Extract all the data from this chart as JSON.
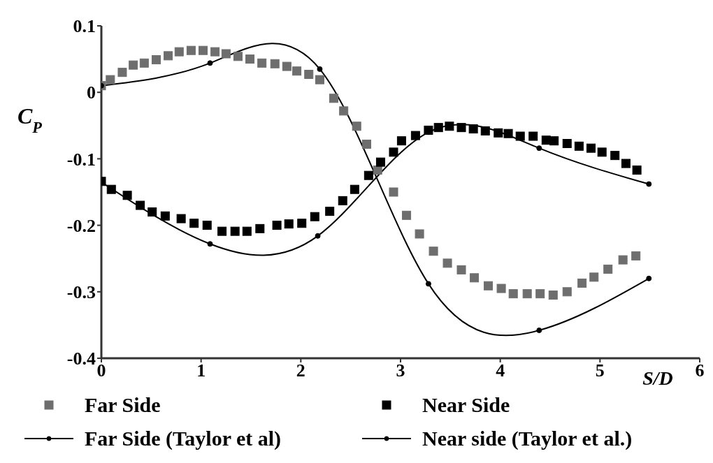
{
  "chart_data": {
    "type": "scatter",
    "xlabel": "S/D",
    "ylabel": "C$_{P}$",
    "xlim": [
      0,
      6
    ],
    "xticks": [
      0,
      1,
      2,
      3,
      4,
      5,
      6
    ],
    "ylim": [
      -0.4,
      0.1
    ],
    "yticks": [
      {
        "value": 0.1,
        "label": "0.1"
      },
      0,
      {
        "value": -0.1,
        "label": "-0.1"
      },
      {
        "value": -0.2,
        "label": "-0.2"
      },
      {
        "value": -0.3,
        "label": "-0.3"
      },
      {
        "value": -0.4,
        "label": "-0.4"
      }
    ],
    "grid": false,
    "legend": "bottom",
    "series": [
      {
        "name": "Far Side",
        "marker": "square",
        "color": "#6e6e6e",
        "x": [
          0,
          0.09,
          0.21,
          0.32,
          0.43,
          0.55,
          0.67,
          0.78,
          0.9,
          1.02,
          1.14,
          1.25,
          1.37,
          1.49,
          1.61,
          1.74,
          1.86,
          1.96,
          2.08,
          2.19,
          2.33,
          2.43,
          2.56,
          2.66,
          2.77,
          2.93,
          3.06,
          3.19,
          3.33,
          3.47,
          3.61,
          3.74,
          3.88,
          4.01,
          4.13,
          4.27,
          4.4,
          4.53,
          4.67,
          4.82,
          4.94,
          5.08,
          5.23,
          5.36
        ],
        "values": [
          0.01,
          0.019,
          0.03,
          0.041,
          0.044,
          0.049,
          0.055,
          0.061,
          0.063,
          0.063,
          0.061,
          0.058,
          0.054,
          0.05,
          0.044,
          0.043,
          0.039,
          0.032,
          0.027,
          0.019,
          -0.009,
          -0.028,
          -0.051,
          -0.078,
          -0.117,
          -0.15,
          -0.185,
          -0.213,
          -0.239,
          -0.257,
          -0.267,
          -0.279,
          -0.291,
          -0.295,
          -0.303,
          -0.303,
          -0.303,
          -0.305,
          -0.3,
          -0.287,
          -0.278,
          -0.266,
          -0.252,
          -0.246
        ]
      },
      {
        "name": "Near Side",
        "marker": "square",
        "color": "#000000",
        "x": [
          0,
          0.1,
          0.26,
          0.39,
          0.51,
          0.64,
          0.8,
          0.93,
          1.06,
          1.21,
          1.34,
          1.46,
          1.59,
          1.76,
          1.88,
          2.01,
          2.14,
          2.29,
          2.42,
          2.54,
          2.68,
          2.8,
          2.93,
          3.01,
          3.15,
          3.28,
          3.38,
          3.49,
          3.61,
          3.73,
          3.85,
          3.98,
          4.08,
          4.2,
          4.33,
          4.46,
          4.54,
          4.67,
          4.79,
          4.91,
          5.02,
          5.15,
          5.26,
          5.37
        ],
        "values": [
          -0.134,
          -0.146,
          -0.155,
          -0.17,
          -0.18,
          -0.186,
          -0.19,
          -0.197,
          -0.2,
          -0.209,
          -0.209,
          -0.209,
          -0.205,
          -0.2,
          -0.198,
          -0.197,
          -0.187,
          -0.179,
          -0.163,
          -0.146,
          -0.125,
          -0.105,
          -0.09,
          -0.073,
          -0.065,
          -0.057,
          -0.053,
          -0.051,
          -0.053,
          -0.055,
          -0.058,
          -0.061,
          -0.062,
          -0.066,
          -0.066,
          -0.072,
          -0.073,
          -0.077,
          -0.081,
          -0.084,
          -0.09,
          -0.095,
          -0.107,
          -0.117
        ]
      },
      {
        "name": "Far Side (Taylor et al)",
        "type": "line",
        "marker": "circle",
        "line_style": "solid",
        "color": "#000000",
        "x": [
          0,
          1.09,
          2.19,
          3.28,
          4.39,
          5.49
        ],
        "values": [
          0.01,
          0.044,
          0.035,
          -0.288,
          -0.358,
          -0.28
        ]
      },
      {
        "name": "Near side (Taylor et al.)",
        "type": "line",
        "marker": "circle",
        "line_style": "solid",
        "color": "#000000",
        "x": [
          0,
          1.09,
          2.17,
          3.28,
          4.39,
          5.49
        ],
        "values": [
          -0.135,
          -0.228,
          -0.216,
          -0.06,
          -0.084,
          -0.138
        ]
      }
    ]
  }
}
